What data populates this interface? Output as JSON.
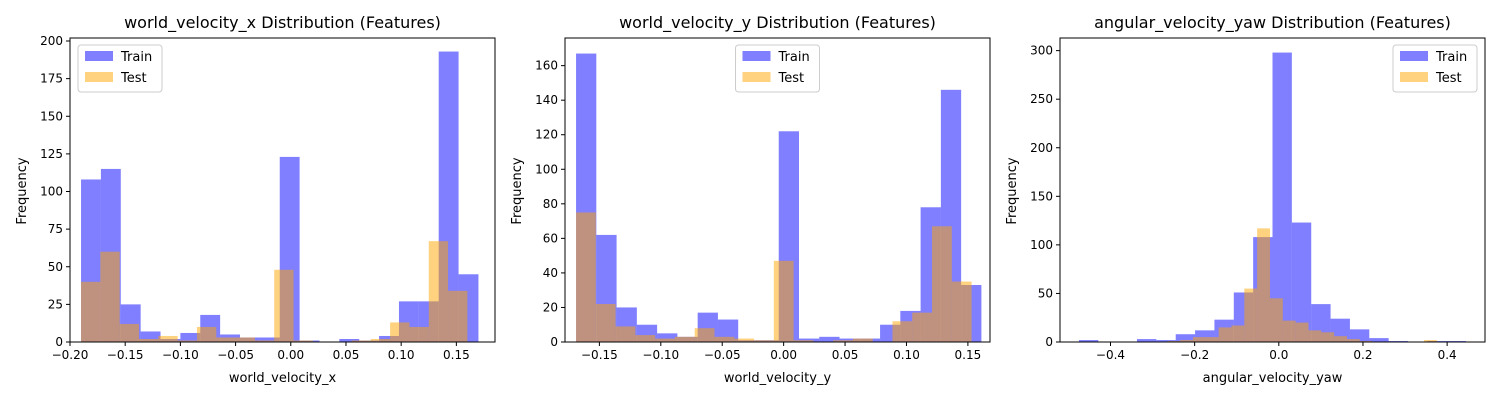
{
  "colors": {
    "train": "#0000ff",
    "test": "#ffa500",
    "opacity": 0.5
  },
  "chart_data": [
    {
      "type": "histogram",
      "title": "world_velocity_x Distribution (Features)",
      "xlabel": "world_velocity_x",
      "ylabel": "Frequency",
      "xlim": [
        -0.2,
        0.185
      ],
      "ylim": [
        0,
        202
      ],
      "xticks": [
        -0.2,
        -0.15,
        -0.1,
        -0.05,
        0.0,
        0.05,
        0.1,
        0.15
      ],
      "xtick_labels": [
        "−0.20",
        "−0.15",
        "−0.10",
        "−0.05",
        "0.00",
        "0.05",
        "0.10",
        "0.15"
      ],
      "yticks": [
        0,
        25,
        50,
        75,
        100,
        125,
        150,
        175,
        200
      ],
      "ytick_labels": [
        "0",
        "25",
        "50",
        "75",
        "100",
        "125",
        "150",
        "175",
        "200"
      ],
      "legend": {
        "position": "top-left",
        "entries": [
          "Train",
          "Test"
        ]
      },
      "series": [
        {
          "name": "Train",
          "color_key": "train",
          "edges": [
            -0.19,
            -0.172,
            -0.154,
            -0.136,
            -0.118,
            -0.1,
            -0.082,
            -0.064,
            -0.046,
            -0.028,
            -0.01,
            0.008,
            0.026,
            0.044,
            0.062,
            0.08,
            0.098,
            0.116,
            0.134,
            0.152,
            0.17
          ],
          "counts": [
            108,
            115,
            25,
            7,
            2,
            6,
            18,
            5,
            3,
            3,
            123,
            1,
            0,
            2,
            1,
            4,
            27,
            27,
            193,
            45
          ]
        },
        {
          "name": "Test",
          "color_key": "test",
          "edges": [
            -0.19,
            -0.1725,
            -0.155,
            -0.1375,
            -0.12,
            -0.1025,
            -0.085,
            -0.0675,
            -0.05,
            -0.0325,
            -0.015,
            0.0025,
            0.02,
            0.0375,
            0.055,
            0.0725,
            0.09,
            0.1075,
            0.125,
            0.1425,
            0.16
          ],
          "counts": [
            40,
            60,
            12,
            2,
            4,
            1,
            10,
            3,
            3,
            1,
            48,
            1,
            0,
            0,
            1,
            2,
            13,
            10,
            67,
            34
          ]
        }
      ]
    },
    {
      "type": "histogram",
      "title": "world_velocity_y Distribution (Features)",
      "xlabel": "world_velocity_y",
      "ylabel": "Frequency",
      "xlim": [
        -0.178,
        0.168
      ],
      "ylim": [
        0,
        176
      ],
      "xticks": [
        -0.15,
        -0.1,
        -0.05,
        0.0,
        0.05,
        0.1,
        0.15
      ],
      "xtick_labels": [
        "−0.15",
        "−0.10",
        "−0.05",
        "0.00",
        "0.05",
        "0.10",
        "0.15"
      ],
      "yticks": [
        0,
        20,
        40,
        60,
        80,
        100,
        120,
        140,
        160
      ],
      "ytick_labels": [
        "0",
        "20",
        "40",
        "60",
        "80",
        "100",
        "120",
        "140",
        "160"
      ],
      "legend": {
        "position": "top-center",
        "entries": [
          "Train",
          "Test"
        ]
      },
      "series": [
        {
          "name": "Train",
          "color_key": "train",
          "edges": [
            -0.169,
            -0.1525,
            -0.136,
            -0.1195,
            -0.103,
            -0.0865,
            -0.07,
            -0.0535,
            -0.037,
            -0.0205,
            -0.004,
            0.0125,
            0.029,
            0.0455,
            0.062,
            0.0785,
            0.095,
            0.1115,
            0.128,
            0.1445,
            0.161
          ],
          "counts": [
            167,
            62,
            20,
            10,
            5,
            3,
            17,
            13,
            1,
            1,
            122,
            2,
            3,
            2,
            2,
            10,
            18,
            78,
            146,
            33
          ]
        },
        {
          "name": "Test",
          "color_key": "test",
          "edges": [
            -0.169,
            -0.1529,
            -0.1368,
            -0.1207,
            -0.1046,
            -0.0885,
            -0.0724,
            -0.0563,
            -0.0402,
            -0.0241,
            -0.008,
            0.0081,
            0.0242,
            0.0403,
            0.0564,
            0.0725,
            0.0886,
            0.1047,
            0.1208,
            0.1369,
            0.153
          ],
          "counts": [
            75,
            22,
            9,
            4,
            2,
            3,
            8,
            3,
            2,
            1,
            47,
            1,
            0,
            1,
            2,
            0,
            12,
            17,
            67,
            35
          ]
        }
      ]
    },
    {
      "type": "histogram",
      "title": "angular_velocity_yaw Distribution (Features)",
      "xlabel": "angular_velocity_yaw",
      "ylabel": "Frequency",
      "xlim": [
        -0.52,
        0.49
      ],
      "ylim": [
        0,
        313
      ],
      "xticks": [
        -0.4,
        -0.2,
        0.0,
        0.2,
        0.4
      ],
      "xtick_labels": [
        "−0.4",
        "−0.2",
        "0.0",
        "0.2",
        "0.4"
      ],
      "yticks": [
        0,
        50,
        100,
        150,
        200,
        250,
        300
      ],
      "ytick_labels": [
        "0",
        "50",
        "100",
        "150",
        "200",
        "250",
        "300"
      ],
      "legend": {
        "position": "top-right",
        "entries": [
          "Train",
          "Test"
        ]
      },
      "series": [
        {
          "name": "Train",
          "color_key": "train",
          "edges": [
            -0.475,
            -0.429,
            -0.383,
            -0.337,
            -0.291,
            -0.245,
            -0.199,
            -0.153,
            -0.107,
            -0.061,
            -0.015,
            0.031,
            0.077,
            0.123,
            0.169,
            0.215,
            0.261,
            0.307,
            0.353,
            0.399,
            0.445
          ],
          "counts": [
            2,
            0,
            0,
            3,
            2,
            8,
            12,
            23,
            51,
            108,
            298,
            123,
            39,
            24,
            13,
            4,
            1,
            0,
            1,
            1
          ]
        },
        {
          "name": "Test",
          "color_key": "test",
          "edges": [
            -0.265,
            -0.2345,
            -0.204,
            -0.1735,
            -0.143,
            -0.1125,
            -0.082,
            -0.0515,
            -0.021,
            0.0095,
            0.04,
            0.0705,
            0.101,
            0.1315,
            0.162,
            0.1925,
            0.223,
            0.2535,
            0.284,
            0.3145,
            0.345,
            0.3755
          ],
          "counts": [
            1,
            2,
            5,
            5,
            15,
            17,
            55,
            117,
            45,
            22,
            20,
            12,
            10,
            6,
            3,
            1,
            0,
            0,
            0,
            0,
            2
          ]
        }
      ]
    }
  ]
}
